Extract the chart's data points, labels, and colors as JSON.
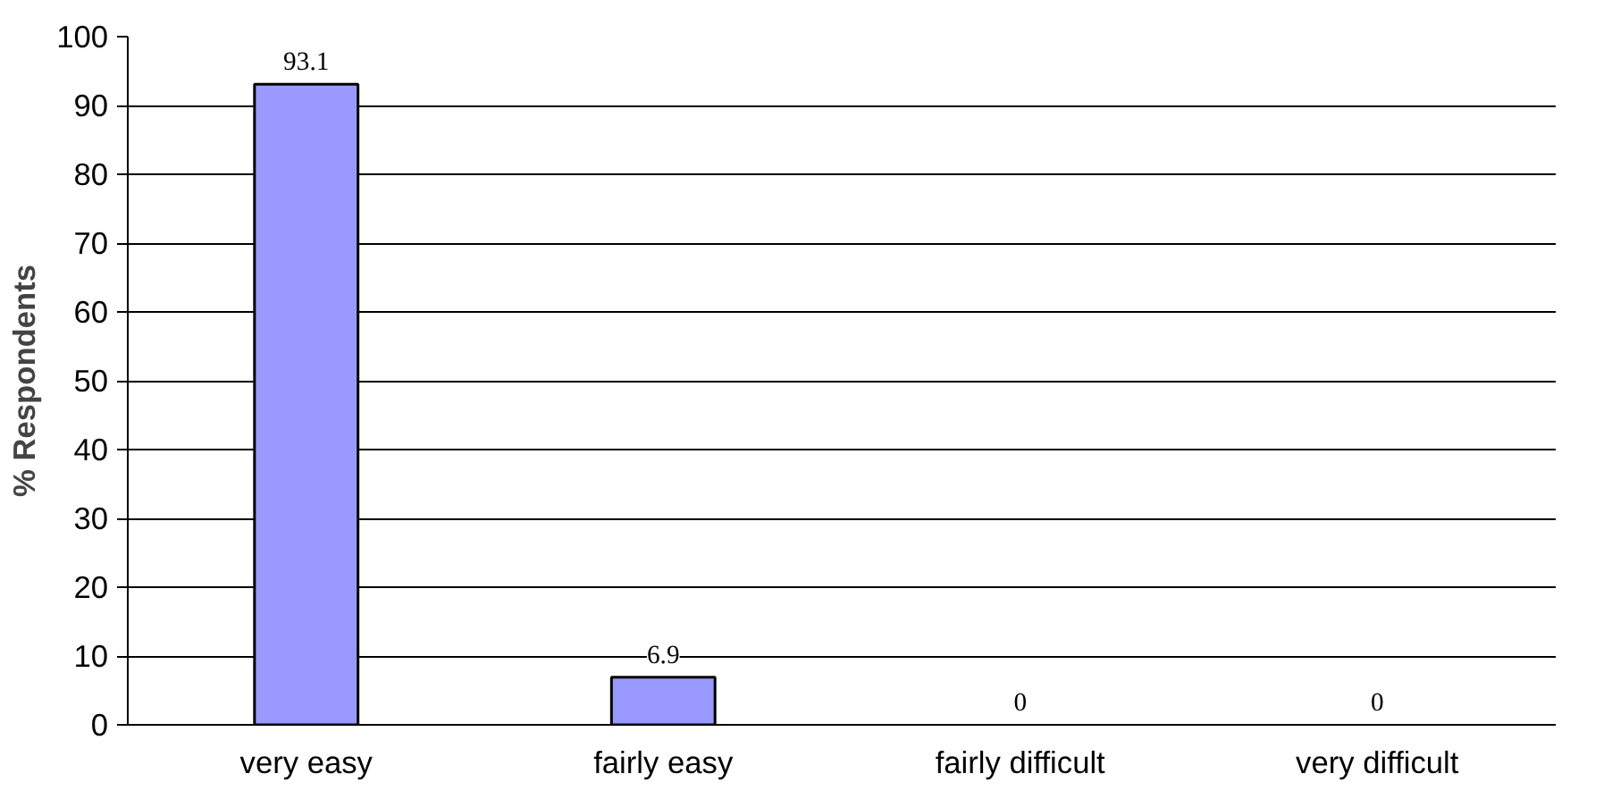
{
  "chart_data": {
    "type": "bar",
    "ylabel": "% Respondents",
    "categories": [
      "very easy",
      "fairly easy",
      "fairly difficult",
      "very difficult"
    ],
    "values": [
      93.1,
      6.9,
      0,
      0
    ],
    "color": "#9999ff",
    "ylim": [
      0,
      100
    ],
    "yticks": [
      0,
      10,
      20,
      30,
      40,
      50,
      60,
      70,
      80,
      90,
      100
    ],
    "grid": "y",
    "data_labels": true
  }
}
